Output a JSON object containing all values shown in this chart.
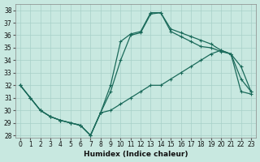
{
  "xlabel": "Humidex (Indice chaleur)",
  "bg_color": "#c8e8e0",
  "grid_color": "#a8d0c8",
  "line_color": "#1a6a5a",
  "xlim": [
    -0.5,
    23.5
  ],
  "ylim": [
    27.8,
    38.5
  ],
  "xticks": [
    0,
    1,
    2,
    3,
    4,
    5,
    6,
    7,
    8,
    9,
    10,
    11,
    12,
    13,
    14,
    15,
    16,
    17,
    18,
    19,
    20,
    21,
    22,
    23
  ],
  "yticks": [
    28,
    29,
    30,
    31,
    32,
    33,
    34,
    35,
    36,
    37,
    38
  ],
  "line_top_x": [
    0,
    1,
    2,
    3,
    4,
    5,
    6,
    7,
    8,
    9,
    10,
    11,
    12,
    13,
    14,
    15,
    16,
    17,
    18,
    19,
    20,
    21,
    22,
    23
  ],
  "line_top_y": [
    32,
    31,
    30,
    29.5,
    29.2,
    29.0,
    28.8,
    28.0,
    29.8,
    32.0,
    35.5,
    36.1,
    36.3,
    37.8,
    37.8,
    36.5,
    36.2,
    35.9,
    35.6,
    35.3,
    34.8,
    34.5,
    32.5,
    31.5
  ],
  "line_mid_x": [
    0,
    1,
    2,
    3,
    4,
    5,
    6,
    7,
    8,
    9,
    10,
    11,
    12,
    13,
    14,
    15,
    16,
    17,
    18,
    19,
    20,
    21,
    22,
    23
  ],
  "line_mid_y": [
    32,
    31,
    30,
    29.5,
    29.2,
    29.0,
    28.8,
    28.0,
    29.8,
    31.5,
    34.0,
    36.0,
    36.2,
    37.7,
    37.8,
    36.3,
    35.9,
    35.5,
    35.1,
    35.0,
    34.7,
    34.5,
    33.5,
    31.5
  ],
  "line_bot_x": [
    0,
    1,
    2,
    3,
    4,
    5,
    6,
    7,
    8,
    9,
    10,
    11,
    12,
    13,
    14,
    15,
    16,
    17,
    18,
    19,
    20,
    21,
    22,
    23
  ],
  "line_bot_y": [
    32,
    31,
    30,
    29.5,
    29.2,
    29.0,
    28.8,
    28.0,
    29.8,
    30.0,
    30.5,
    31.0,
    31.5,
    32.0,
    32.0,
    32.5,
    33.0,
    33.5,
    34.0,
    34.5,
    34.8,
    34.5,
    31.5,
    31.3
  ]
}
